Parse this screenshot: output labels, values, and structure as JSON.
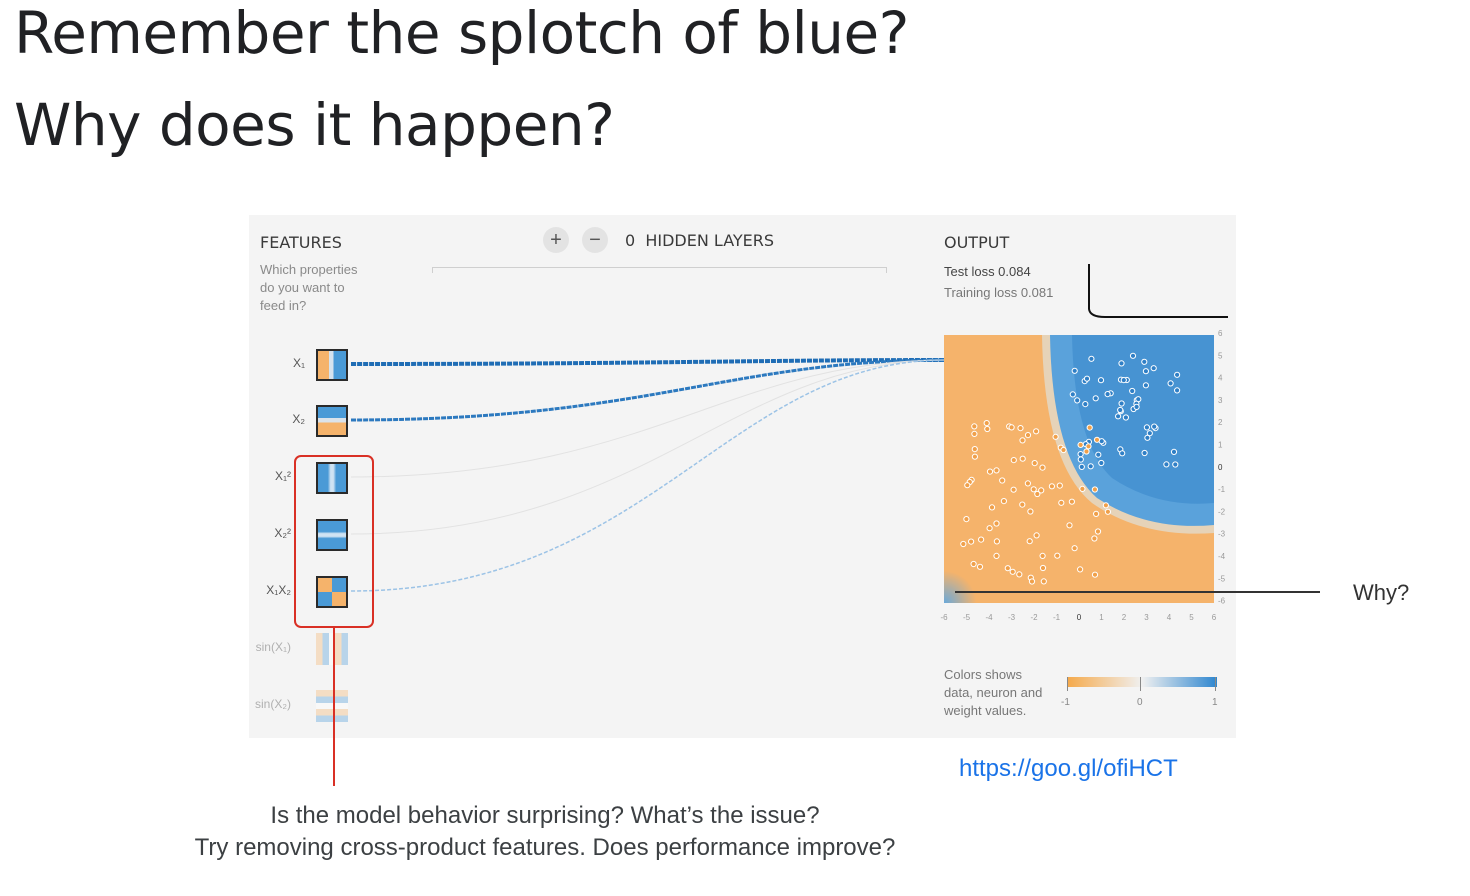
{
  "slide": {
    "title_line1": "Remember the splotch of blue?",
    "title_line2": "Why does it happen?",
    "why_label": "Why?",
    "link": "https://goo.gl/ofiHCT",
    "question_line1": "Is the model behavior surprising? What’s the issue?",
    "question_line2": "Try removing cross-product features. Does performance improve?"
  },
  "playground": {
    "features_header": "FEATURES",
    "features_sub": [
      "Which properties",
      "do you want to",
      "feed in?"
    ],
    "add_layer": "+",
    "remove_layer": "−",
    "hidden_layers": "0  HIDDEN LAYERS",
    "output_header": "OUTPUT",
    "test_loss": "Test loss 0.084",
    "training_loss": "Training loss 0.081",
    "features": [
      {
        "label": "X₁",
        "active": true,
        "icon": "x1-feature-icon"
      },
      {
        "label": "X₂",
        "active": true,
        "icon": "x2-feature-icon"
      },
      {
        "label": "X₁²",
        "active": true,
        "icon": "x1-squared-feature-icon"
      },
      {
        "label": "X₂²",
        "active": true,
        "icon": "x2-squared-feature-icon"
      },
      {
        "label": "X₁X₂",
        "active": true,
        "icon": "x1x2-feature-icon"
      },
      {
        "label": "sin(X₁)",
        "active": false,
        "icon": "sin-x1-feature-icon"
      },
      {
        "label": "sin(X₂)",
        "active": false,
        "icon": "sin-x2-feature-icon"
      }
    ],
    "legend_text": [
      "Colors shows",
      "data, neuron and",
      "weight values."
    ],
    "legend_ticks": [
      "-1",
      "0",
      "1"
    ],
    "x_ticks": [
      "-6",
      "-5",
      "-4",
      "-3",
      "-2",
      "-1",
      "0",
      "1",
      "2",
      "3",
      "4",
      "5",
      "6"
    ],
    "y_ticks": [
      "6",
      "5",
      "4",
      "3",
      "2",
      "1",
      "0",
      "-1",
      "-2",
      "-3",
      "-4",
      "-5",
      "-6"
    ],
    "colors": {
      "orange": "#f5b36b",
      "blue": "#4a9ad6",
      "highlight": "#d93025",
      "link": "#1a73e8"
    }
  }
}
